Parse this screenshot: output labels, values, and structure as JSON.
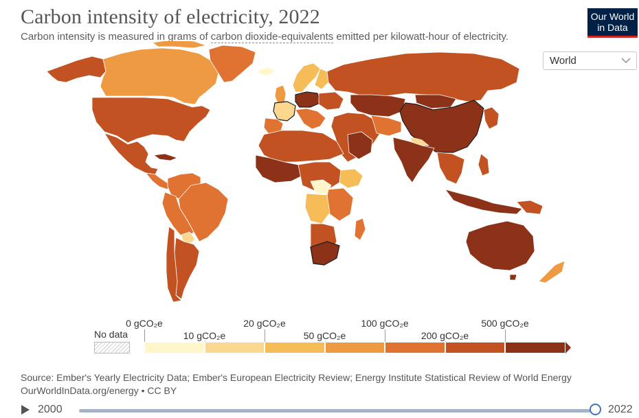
{
  "header": {
    "title": "Carbon intensity of electricity, 2022",
    "subtitle_before": "Carbon intensity is measured in grams of ",
    "subtitle_link": "carbon dioxide-equivalents",
    "subtitle_after": " emitted per kilowatt-hour of electricity.",
    "logo_line1": "Our World",
    "logo_line2": "in Data"
  },
  "region_selector": {
    "selected": "World"
  },
  "legend": {
    "no_data_label": "No data",
    "bins": [
      {
        "color": "#fff6c9",
        "lower": "0 gCO₂e"
      },
      {
        "color": "#fbd78f",
        "lower": "10 gCO₂e"
      },
      {
        "color": "#f5bc58",
        "lower": "20 gCO₂e"
      },
      {
        "color": "#ee9a43",
        "lower": "50 gCO₂e"
      },
      {
        "color": "#e07232",
        "lower": "100 gCO₂e"
      },
      {
        "color": "#c25222",
        "lower": "200 gCO₂e"
      },
      {
        "color": "#8c3219",
        "lower": "500 gCO₂e"
      }
    ]
  },
  "source": {
    "line1": "Source: Ember's Yearly Electricity Data; Ember's European Electricity Review; Energy Institute Statistical Review of World Energy",
    "line2": "OurWorldInData.org/energy • CC BY"
  },
  "timeline": {
    "start_year": "2000",
    "end_year": "2022",
    "position": 1.0
  },
  "colors": {
    "ocean": "#ffffff",
    "border": "#ffffff",
    "highlight_border": "#1e1e1e",
    "track": "#a6b3c5",
    "handle": "#3c75c6"
  },
  "icons": {
    "play": "play-icon",
    "dropdown": "chevron-down-icon"
  }
}
